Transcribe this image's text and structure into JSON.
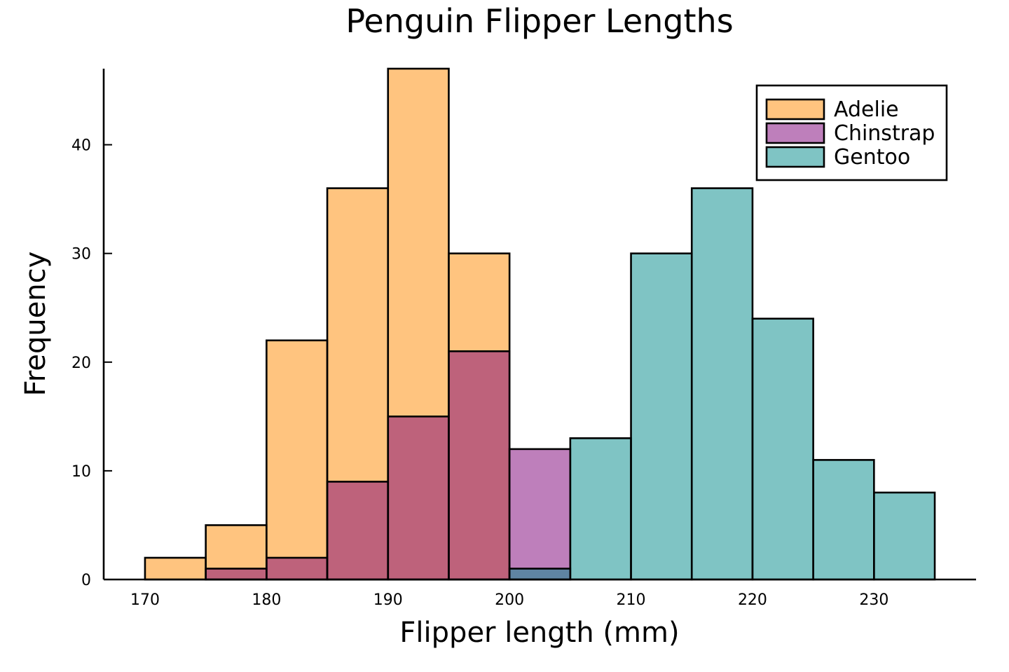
{
  "chart_data": {
    "type": "bar",
    "title": "Penguin Flipper Lengths",
    "xlabel": "Flipper length (mm)",
    "ylabel": "Frequency",
    "xlim": [
      166.6,
      238.4
    ],
    "ylim": [
      0,
      47
    ],
    "bin_edges": [
      170,
      175,
      180,
      185,
      190,
      195,
      200,
      205,
      210,
      215,
      220,
      225,
      230,
      235
    ],
    "x_ticks": [
      170,
      180,
      190,
      200,
      210,
      220,
      230
    ],
    "y_ticks": [
      0,
      10,
      20,
      30,
      40
    ],
    "grid": false,
    "legend_position": "top-right",
    "bar_opacity": 0.5,
    "series": [
      {
        "name": "Adelie",
        "color": "#ff8a00",
        "values": [
          2,
          5,
          22,
          36,
          47,
          30,
          0,
          0,
          0,
          0,
          0,
          0,
          0
        ]
      },
      {
        "name": "Chinstrap",
        "color": "#7d0077",
        "values": [
          0,
          1,
          2,
          9,
          15,
          21,
          12,
          0,
          0,
          0,
          0,
          0,
          0
        ]
      },
      {
        "name": "Gentoo",
        "color": "#008a8a",
        "values": [
          0,
          0,
          0,
          0,
          0,
          0,
          1,
          13,
          30,
          36,
          24,
          11,
          8
        ]
      }
    ]
  }
}
